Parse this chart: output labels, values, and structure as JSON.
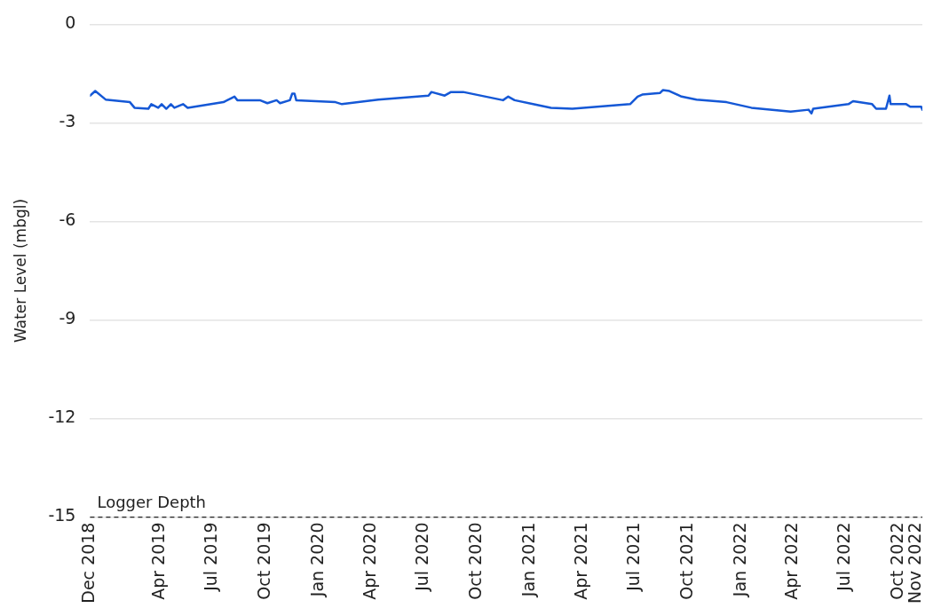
{
  "chart_data": {
    "type": "line",
    "ylabel": "Water Level (mbgl)",
    "xlim": [
      "2018-12-01",
      "2022-11-11"
    ],
    "ylim": [
      -15,
      0
    ],
    "yticks": [
      -15,
      -12,
      -9,
      -6,
      -3,
      0
    ],
    "xticks": [
      {
        "value": "2018-12-01",
        "label": "Dec 2018"
      },
      {
        "value": "2019-04-01",
        "label": "Apr 2019"
      },
      {
        "value": "2019-07-01",
        "label": "Jul 2019"
      },
      {
        "value": "2019-10-01",
        "label": "Oct 2019"
      },
      {
        "value": "2020-01-01",
        "label": "Jan 2020"
      },
      {
        "value": "2020-04-01",
        "label": "Apr 2020"
      },
      {
        "value": "2020-07-01",
        "label": "Jul 2020"
      },
      {
        "value": "2020-10-01",
        "label": "Oct 2020"
      },
      {
        "value": "2021-01-01",
        "label": "Jan 2021"
      },
      {
        "value": "2021-04-01",
        "label": "Apr 2021"
      },
      {
        "value": "2021-07-01",
        "label": "Jul 2021"
      },
      {
        "value": "2021-10-01",
        "label": "Oct 2021"
      },
      {
        "value": "2022-01-01",
        "label": "Jan 2022"
      },
      {
        "value": "2022-04-01",
        "label": "Apr 2022"
      },
      {
        "value": "2022-07-01",
        "label": "Jul 2022"
      },
      {
        "value": "2022-10-01",
        "label": "Oct 2022"
      },
      {
        "value": "2022-11-01",
        "label": "Nov 2022"
      }
    ],
    "grid": "y",
    "legend": false,
    "marker": "none",
    "line_style": "solid",
    "series": [
      {
        "color": "#1558d6",
        "x": [
          "2018-12-01",
          "2018-12-10",
          "2018-12-28",
          "2019-02-08",
          "2019-02-16",
          "2019-03-12",
          "2019-03-17",
          "2019-03-29",
          "2019-04-04",
          "2019-04-12",
          "2019-04-20",
          "2019-04-26",
          "2019-05-11",
          "2019-05-19",
          "2019-07-20",
          "2019-08-08",
          "2019-08-13",
          "2019-09-21",
          "2019-10-04",
          "2019-10-20",
          "2019-10-26",
          "2019-11-12",
          "2019-11-16",
          "2019-11-20",
          "2019-11-23",
          "2020-01-30",
          "2020-02-10",
          "2020-04-13",
          "2020-07-09",
          "2020-07-14",
          "2020-08-06",
          "2020-08-17",
          "2020-09-07",
          "2020-11-15",
          "2020-11-24",
          "2020-12-05",
          "2021-01-06",
          "2021-02-06",
          "2021-03-15",
          "2021-06-23",
          "2021-07-06",
          "2021-07-14",
          "2021-08-14",
          "2021-08-19",
          "2021-08-30",
          "2021-09-20",
          "2021-10-16",
          "2021-12-07",
          "2022-01-19",
          "2022-03-28",
          "2022-04-28",
          "2022-05-03",
          "2022-05-06",
          "2022-07-06",
          "2022-07-14",
          "2022-08-16",
          "2022-08-23",
          "2022-09-09",
          "2022-09-15",
          "2022-09-17",
          "2022-10-14",
          "2022-10-21",
          "2022-11-09",
          "2022-11-11"
        ],
        "values": [
          -2.17,
          -2.03,
          -2.29,
          -2.37,
          -2.54,
          -2.57,
          -2.43,
          -2.54,
          -2.43,
          -2.57,
          -2.43,
          -2.54,
          -2.43,
          -2.54,
          -2.37,
          -2.2,
          -2.31,
          -2.31,
          -2.4,
          -2.31,
          -2.4,
          -2.31,
          -2.11,
          -2.11,
          -2.31,
          -2.37,
          -2.43,
          -2.29,
          -2.17,
          -2.06,
          -2.17,
          -2.06,
          -2.06,
          -2.31,
          -2.2,
          -2.31,
          -2.43,
          -2.54,
          -2.57,
          -2.43,
          -2.2,
          -2.14,
          -2.09,
          -2.0,
          -2.03,
          -2.2,
          -2.29,
          -2.37,
          -2.54,
          -2.66,
          -2.6,
          -2.71,
          -2.57,
          -2.43,
          -2.34,
          -2.43,
          -2.57,
          -2.57,
          -2.17,
          -2.43,
          -2.43,
          -2.51,
          -2.51,
          -2.6
        ]
      }
    ],
    "ref_lines": [
      {
        "axis": "y",
        "value": -15,
        "label": "Logger Depth",
        "color": "#222222",
        "line_style": "dashed"
      }
    ]
  }
}
